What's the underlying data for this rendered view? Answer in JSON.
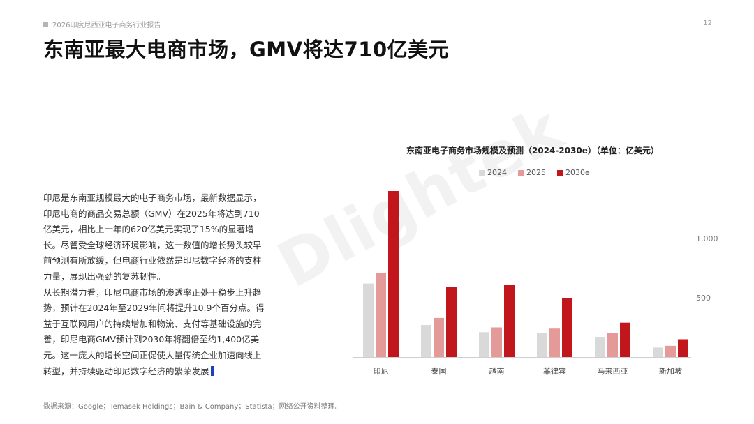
{
  "header": {
    "report_name": "2026印度尼西亚电子商务行业报告",
    "page_number": "12"
  },
  "title": "东南亚最大电商市场，GMV将达710亿美元",
  "body": {
    "paragraph1": "印尼是东南亚规模最大的电子商务市场，最新数据显示，印尼电商的商品交易总额（GMV）在2025年将达到710亿美元，相比上一年的620亿美元实现了15%的显著增长。尽管受全球经济环境影响，这一数值的增长势头较早前预测有所放缓，但电商行业依然是印尼数字经济的支柱力量，展现出强劲的复苏韧性。",
    "paragraph2": "从长期潜力看，印尼电商市场的渗透率正处于稳步上升趋势，预计在2024年至2029年间将提升10.9个百分点。得益于互联网用户的持续增加和物流、支付等基础设施的完善，印尼电商GMV预计到2030年将翻倍至约1,400亿美元。这一庞大的增长空间正促使大量传统企业加速向线上转型，并持续驱动印尼数字经济的繁荣发展"
  },
  "watermark": "Dlightek",
  "source": "数据来源：Google；Temasek Holdings；Bain & Company；Statista；网络公开资料整理。",
  "chart_data": {
    "type": "bar",
    "title": "东南亚电子商务市场规模及预测（2024-2030e）（单位：亿美元）",
    "categories": [
      "印尼",
      "泰国",
      "越南",
      "菲律宾",
      "马来西亚",
      "新加坡"
    ],
    "series": [
      {
        "name": "2024",
        "color": "#d9d9d9",
        "values": [
          620,
          270,
          210,
          200,
          170,
          80
        ]
      },
      {
        "name": "2025",
        "color": "#e59a9a",
        "values": [
          710,
          330,
          250,
          240,
          200,
          95
        ]
      },
      {
        "name": "2030e",
        "color": "#c0161c",
        "values": [
          1400,
          590,
          610,
          500,
          290,
          150
        ]
      }
    ],
    "yticks": [
      "500",
      "1,000"
    ],
    "ytick_values": [
      500,
      1000
    ],
    "ylim": [
      0,
      1400
    ],
    "grid": false,
    "legend": "top"
  }
}
